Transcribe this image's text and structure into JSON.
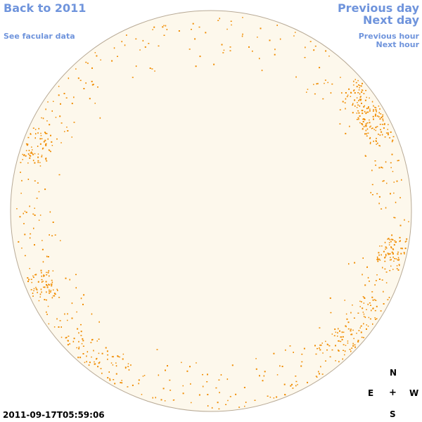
{
  "nav": {
    "back_label": "Back to 2011",
    "facular_label": "See facular data",
    "previous_day_label": "Previous day",
    "next_day_label": "Next day",
    "previous_hour_label": "Previous hour",
    "next_hour_label": "Next hour"
  },
  "compass": {
    "north": "N",
    "east": "E",
    "center": "+",
    "west": "W",
    "south": "S"
  },
  "timestamp": "2011-09-17T05:59:06",
  "colors": {
    "link": "#6f94dc",
    "disk_fill": "#fdf8ec",
    "disk_edge": "#b8aa96",
    "facula": "#f08c00"
  }
}
